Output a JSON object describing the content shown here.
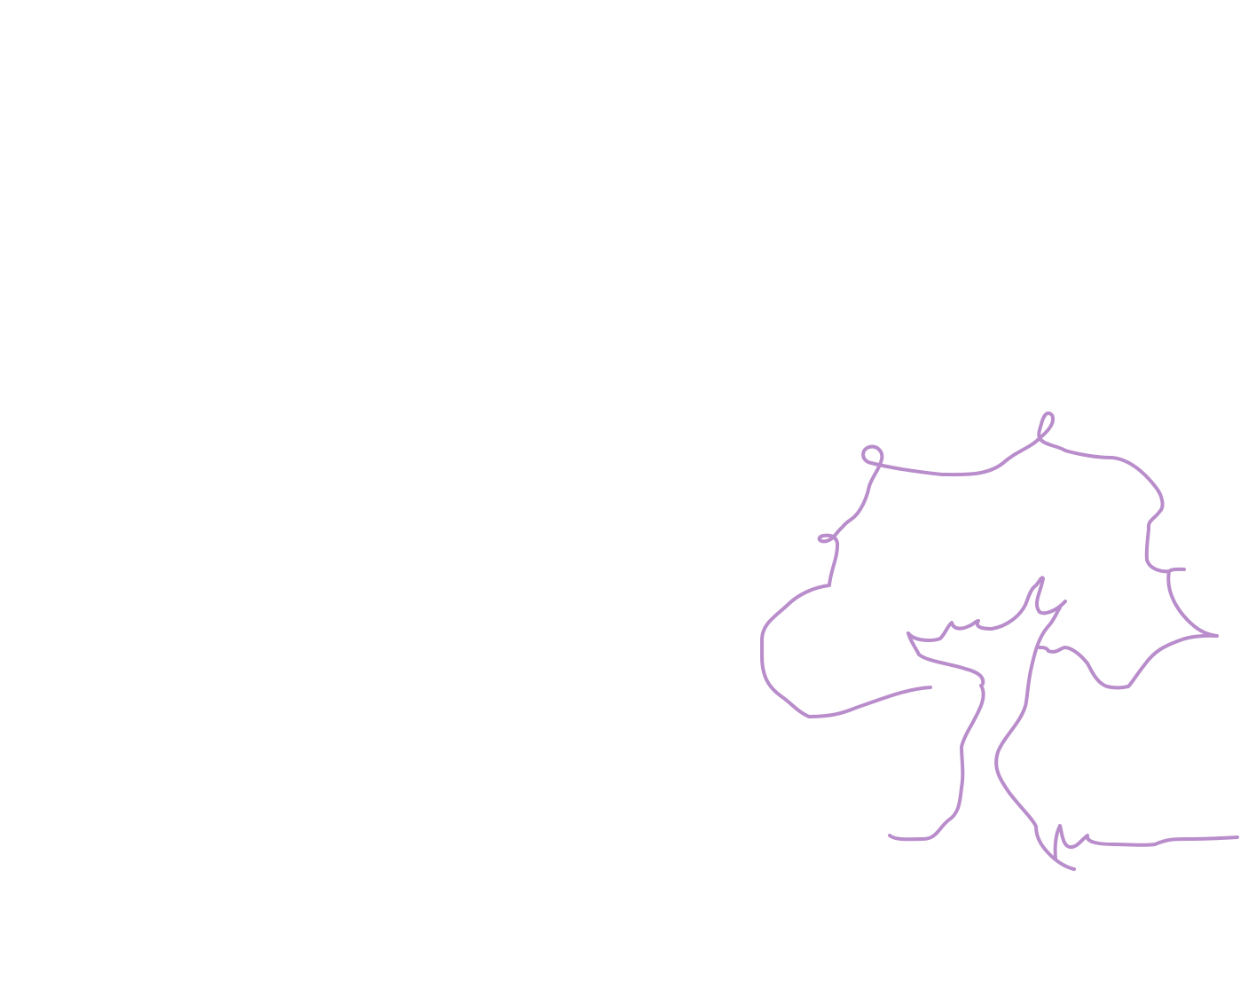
{
  "drawing": {
    "subject": "tree-line-drawing",
    "stroke_color": "#b98dcb",
    "background_color": "#ffffff"
  }
}
